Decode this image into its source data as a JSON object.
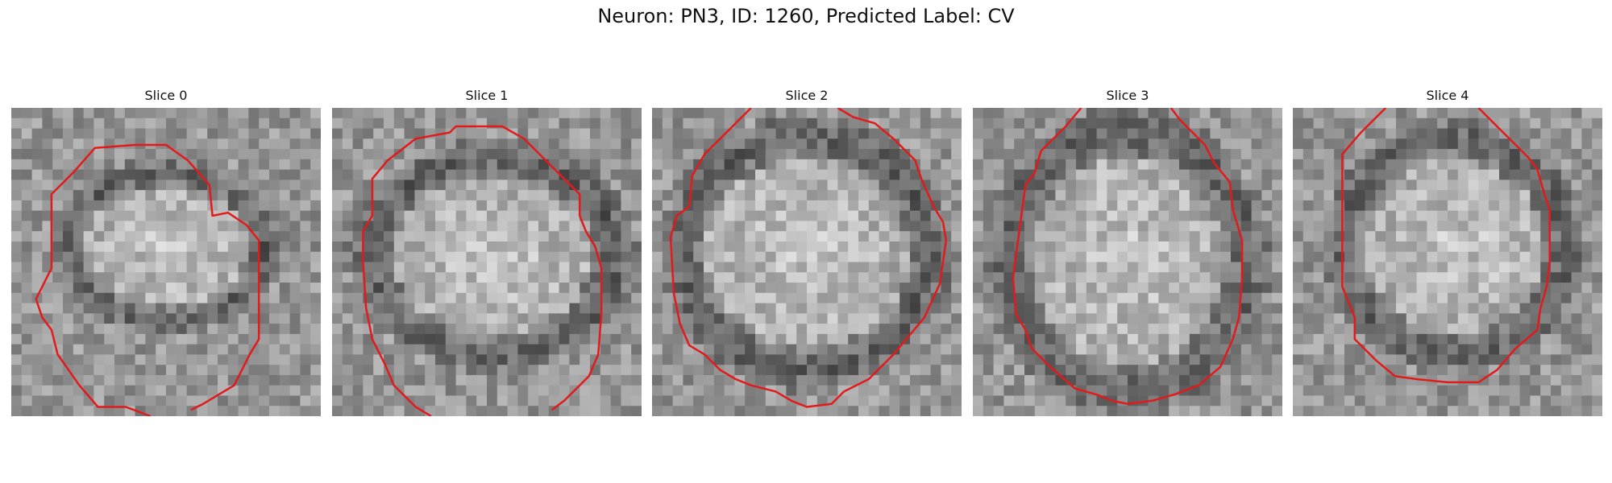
{
  "figure": {
    "title": "Neuron: PN3, ID: 1260, Predicted Label: CV"
  },
  "panels": [
    {
      "label": "Slice 0"
    },
    {
      "label": "Slice 1"
    },
    {
      "label": "Slice 2"
    },
    {
      "label": "Slice 3"
    },
    {
      "label": "Slice 4"
    }
  ],
  "colors": {
    "contour": "#e31a1c",
    "background": "#ffffff"
  }
}
